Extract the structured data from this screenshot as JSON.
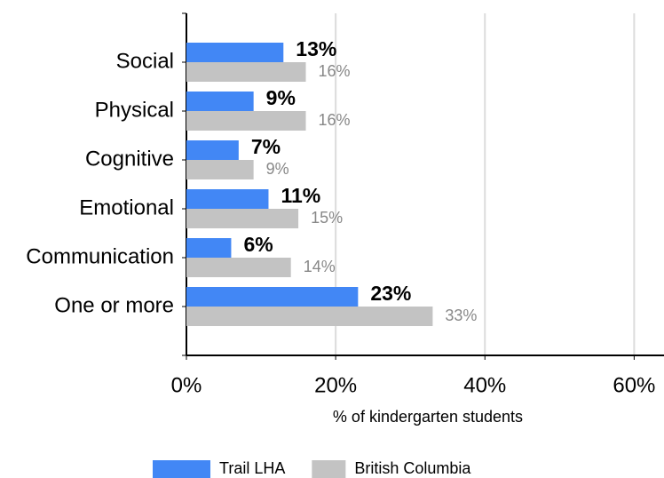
{
  "chart_data": {
    "type": "bar",
    "orientation": "horizontal",
    "categories": [
      "Social",
      "Physical",
      "Cognitive",
      "Emotional",
      "Communication",
      "One or more"
    ],
    "series": [
      {
        "name": "Trail LHA",
        "color": "#4287f5",
        "values": [
          13,
          9,
          7,
          11,
          6,
          23
        ],
        "value_labels": [
          "13%",
          "9%",
          "7%",
          "11%",
          "6%",
          "23%"
        ]
      },
      {
        "name": "British Columbia",
        "color": "#c3c3c3",
        "values": [
          16,
          16,
          9,
          15,
          14,
          33
        ],
        "value_labels": [
          "16%",
          "16%",
          "9%",
          "15%",
          "14%",
          "33%"
        ]
      }
    ],
    "x_label": "% of kindergarten students",
    "xlim": [
      0,
      64
    ],
    "xticks": [
      {
        "value": 0,
        "label": "0%"
      },
      {
        "value": 20,
        "label": "20%"
      },
      {
        "value": 40,
        "label": "40%"
      },
      {
        "value": 60,
        "label": "60%"
      }
    ],
    "grid": true,
    "legend": "bottom"
  }
}
